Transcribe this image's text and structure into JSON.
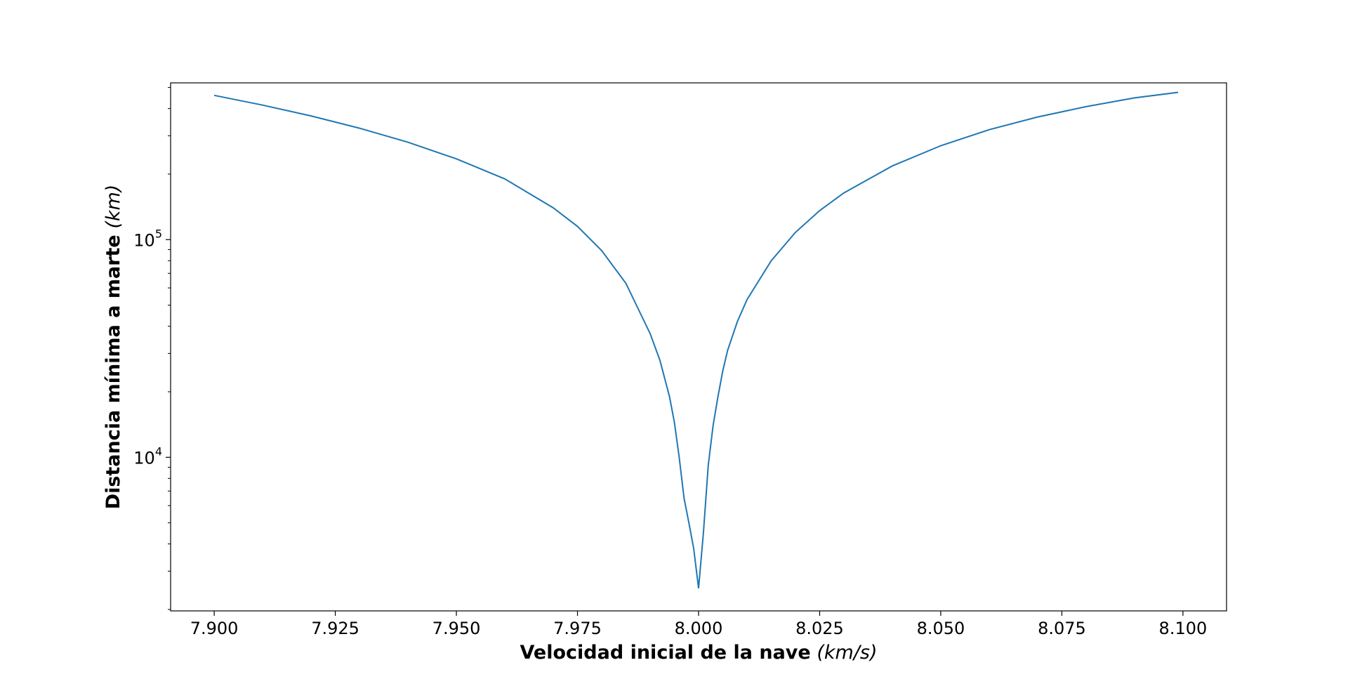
{
  "chart_data": {
    "type": "line",
    "x_scale": "linear",
    "y_scale": "log",
    "xlim": [
      7.891,
      8.109
    ],
    "ylim": [
      1970,
      525000
    ],
    "grid": false,
    "xlabel": {
      "bold": "Velocidad inicial de la nave",
      "unit": "(km/s)"
    },
    "ylabel": {
      "bold": "Distancia mínima a marte",
      "unit": "(km)"
    },
    "x_ticks": [
      {
        "value": 7.9,
        "label": "7.900"
      },
      {
        "value": 7.925,
        "label": "7.925"
      },
      {
        "value": 7.95,
        "label": "7.950"
      },
      {
        "value": 7.975,
        "label": "7.975"
      },
      {
        "value": 8.0,
        "label": "8.000"
      },
      {
        "value": 8.025,
        "label": "8.025"
      },
      {
        "value": 8.05,
        "label": "8.050"
      },
      {
        "value": 8.075,
        "label": "8.075"
      },
      {
        "value": 8.1,
        "label": "8.100"
      }
    ],
    "y_major_ticks": [
      {
        "value": 10000,
        "base": "10",
        "exp": "4"
      },
      {
        "value": 100000,
        "base": "10",
        "exp": "5"
      }
    ],
    "y_minor_ticks": [
      2000,
      3000,
      4000,
      5000,
      6000,
      7000,
      8000,
      9000,
      20000,
      30000,
      40000,
      50000,
      60000,
      70000,
      80000,
      90000,
      200000,
      300000,
      400000,
      500000
    ],
    "series": [
      {
        "color": "#1f77b4",
        "x": [
          7.9,
          7.91,
          7.92,
          7.93,
          7.94,
          7.95,
          7.96,
          7.97,
          7.975,
          7.98,
          7.985,
          7.99,
          7.992,
          7.994,
          7.995,
          7.996,
          7.997,
          7.998,
          7.999,
          8.0,
          8.001,
          8.002,
          8.003,
          8.004,
          8.005,
          8.006,
          8.008,
          8.01,
          8.015,
          8.02,
          8.025,
          8.03,
          8.04,
          8.05,
          8.06,
          8.07,
          8.08,
          8.09,
          8.099
        ],
        "y": [
          460000,
          415000,
          370000,
          325000,
          280000,
          235000,
          190000,
          140000,
          115000,
          89000,
          63000,
          37000,
          28000,
          19000,
          14500,
          10000,
          6500,
          5000,
          3800,
          2500,
          4500,
          9200,
          14000,
          19000,
          25000,
          31000,
          42000,
          53000,
          80000,
          108000,
          136000,
          164000,
          218000,
          270000,
          320000,
          366000,
          408000,
          448000,
          475000
        ]
      }
    ]
  }
}
